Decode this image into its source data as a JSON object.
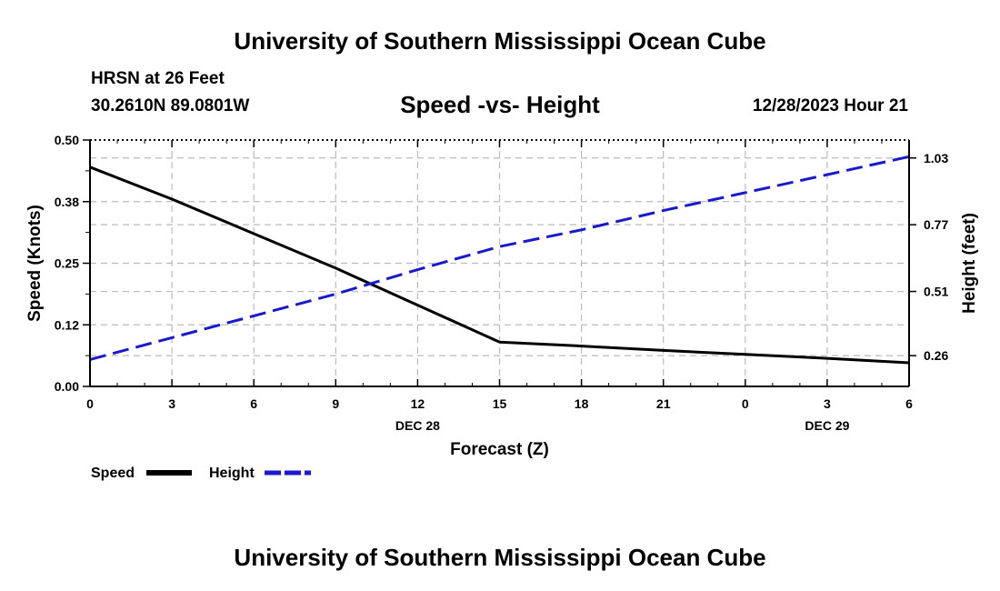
{
  "header": {
    "title": "University of Southern Mississippi Ocean Cube",
    "station": "HRSN at 26 Feet",
    "coords": "30.2610N  89.0801W",
    "subtitle": "Speed -vs- Height",
    "datetime": "12/28/2023 Hour 21"
  },
  "footer": {
    "title": "University of Southern Mississippi Ocean Cube"
  },
  "colors": {
    "speed": "#000000",
    "height": "#1a1acc",
    "grid": "#bbbbbb"
  },
  "chart_data": {
    "type": "line",
    "xlabel": "Forecast (Z)",
    "ylabel": "Speed (Knots)",
    "y2label": "Height (feet)",
    "x": [
      0,
      3,
      6,
      9,
      12,
      15,
      18,
      21,
      24,
      27,
      30
    ],
    "x_tick_labels": [
      "0",
      "3",
      "6",
      "9",
      "12",
      "15",
      "18",
      "21",
      "0",
      "3",
      "6"
    ],
    "date_labels": [
      {
        "x": 12,
        "label": "DEC 28"
      },
      {
        "x": 27,
        "label": "DEC 29"
      }
    ],
    "xlim": [
      0,
      30
    ],
    "ylim": [
      0,
      0.5
    ],
    "y_ticks": [
      0.0,
      0.125,
      0.25,
      0.375,
      0.5
    ],
    "y_tick_labels": [
      "0.00",
      "0.12",
      "0.25",
      "0.38",
      "0.50"
    ],
    "y2lim": [
      0.14,
      1.1
    ],
    "y2_ticks": [
      0.26,
      0.51,
      0.77,
      1.03
    ],
    "y2_tick_labels": [
      "0.26",
      "0.51",
      "0.77",
      "1.03"
    ],
    "series": [
      {
        "name": "Speed",
        "axis": "left",
        "style": "solid",
        "x": [
          0,
          3,
          6,
          9,
          12,
          15,
          18,
          21,
          24,
          27,
          30
        ],
        "values": [
          0.445,
          0.38,
          0.31,
          0.24,
          0.165,
          0.09,
          0.082,
          0.073,
          0.065,
          0.057,
          0.048
        ]
      },
      {
        "name": "Height",
        "axis": "right",
        "style": "dashed",
        "x": [
          0,
          3,
          6,
          9,
          12,
          15,
          18,
          21,
          24,
          27,
          30
        ],
        "values": [
          0.245,
          0.33,
          0.415,
          0.5,
          0.595,
          0.685,
          0.75,
          0.825,
          0.895,
          0.965,
          1.035
        ]
      }
    ],
    "legend": [
      {
        "name": "Speed",
        "series": 0
      },
      {
        "name": "Height",
        "series": 1
      }
    ]
  }
}
